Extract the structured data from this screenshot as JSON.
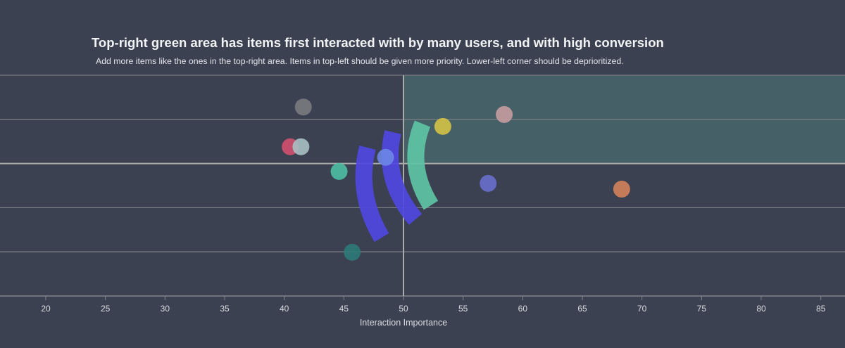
{
  "chart_data": {
    "type": "scatter",
    "title": "Top-right green area has items first interacted with by many users, and with high conversion",
    "subtitle": "Add more items like the ones in the top-right area. Items in top-left should be given more priority. Lower-left corner should be deprioritized.",
    "xlabel": "Interaction Importance",
    "ylabel": "",
    "xlim": [
      16.2,
      87
    ],
    "ylim": [
      0,
      5
    ],
    "x_ticks": [
      20,
      25,
      30,
      35,
      40,
      45,
      50,
      55,
      60,
      65,
      70,
      75,
      80,
      85
    ],
    "y_gridlines": [
      1,
      2,
      3,
      4,
      5
    ],
    "grid": true,
    "threshold_x": 50,
    "threshold_y": 3,
    "highlight_region": {
      "x_from": 50,
      "y_from": 3,
      "color": "#4f7a78"
    },
    "points": [
      {
        "x": 41.6,
        "y": 4.28,
        "color": "#7a7b7f"
      },
      {
        "x": 40.5,
        "y": 3.38,
        "color": "#d2506f"
      },
      {
        "x": 41.4,
        "y": 3.38,
        "color": "#a9c0c3"
      },
      {
        "x": 44.6,
        "y": 2.82,
        "color": "#4fbea3"
      },
      {
        "x": 48.5,
        "y": 3.14,
        "color": "#6d86e6"
      },
      {
        "x": 45.7,
        "y": 0.99,
        "color": "#2f7a78"
      },
      {
        "x": 53.3,
        "y": 3.84,
        "color": "#d3c346"
      },
      {
        "x": 58.45,
        "y": 4.11,
        "color": "#c49c9e"
      },
      {
        "x": 57.1,
        "y": 2.55,
        "color": "#6a6fcd"
      },
      {
        "x": 68.3,
        "y": 2.42,
        "color": "#d4825a"
      }
    ],
    "overlay_arc_colors": [
      "#5046e0",
      "#5046e0",
      "#5ec4a4"
    ]
  }
}
